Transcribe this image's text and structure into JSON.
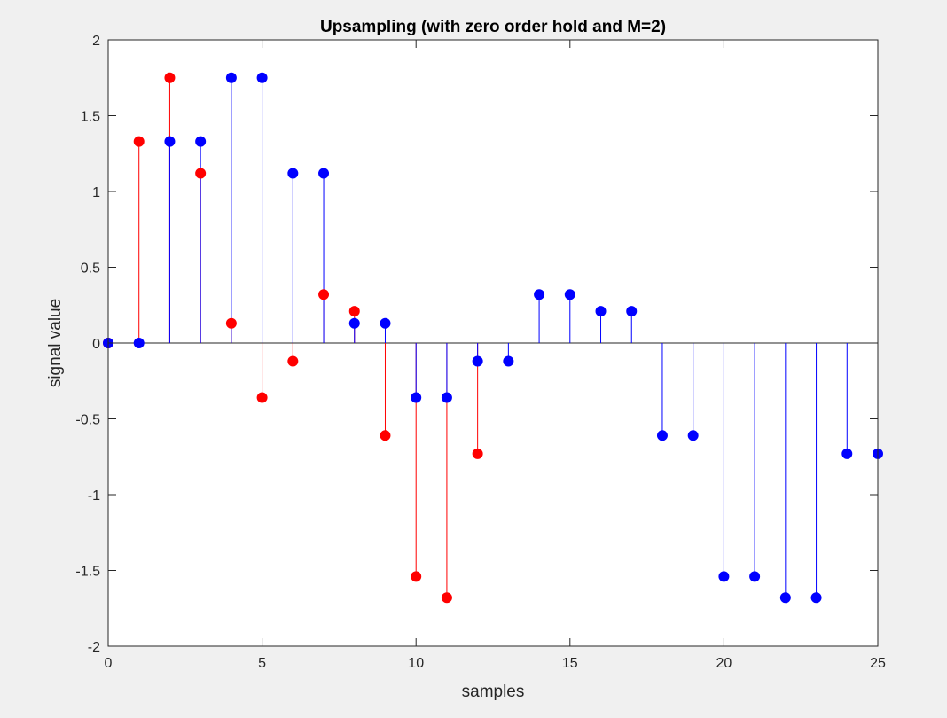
{
  "chart_data": {
    "type": "stem",
    "title": "Upsampling (with zero order hold and M=2)",
    "xlabel": "samples",
    "ylabel": "signal value",
    "xlim": [
      0,
      25
    ],
    "ylim": [
      -2,
      2
    ],
    "xticks": [
      "0",
      "5",
      "10",
      "15",
      "20",
      "25"
    ],
    "yticks": [
      "-2",
      "-1.5",
      "-1",
      "-0.5",
      "0",
      "0.5",
      "1",
      "1.5",
      "2"
    ],
    "grid": false,
    "series": [
      {
        "color": "#ff0000",
        "x": [
          0,
          1,
          2,
          3,
          4,
          5,
          6,
          7,
          8,
          9,
          10,
          11,
          12
        ],
        "values": [
          0,
          1.33,
          1.75,
          1.12,
          0.13,
          -0.36,
          -0.12,
          0.32,
          0.21,
          -0.61,
          -1.54,
          -1.68,
          -0.73
        ]
      },
      {
        "color": "#0000ff",
        "x": [
          0,
          1,
          2,
          3,
          4,
          5,
          6,
          7,
          8,
          9,
          10,
          11,
          12,
          13,
          14,
          15,
          16,
          17,
          18,
          19,
          20,
          21,
          22,
          23,
          24,
          25
        ],
        "values": [
          0,
          0,
          1.33,
          1.33,
          1.75,
          1.75,
          1.12,
          1.12,
          0.13,
          0.13,
          -0.36,
          -0.36,
          -0.12,
          -0.12,
          0.32,
          0.32,
          0.21,
          0.21,
          -0.61,
          -0.61,
          -1.54,
          -1.54,
          -1.68,
          -1.68,
          -0.73,
          -0.73
        ]
      }
    ]
  }
}
